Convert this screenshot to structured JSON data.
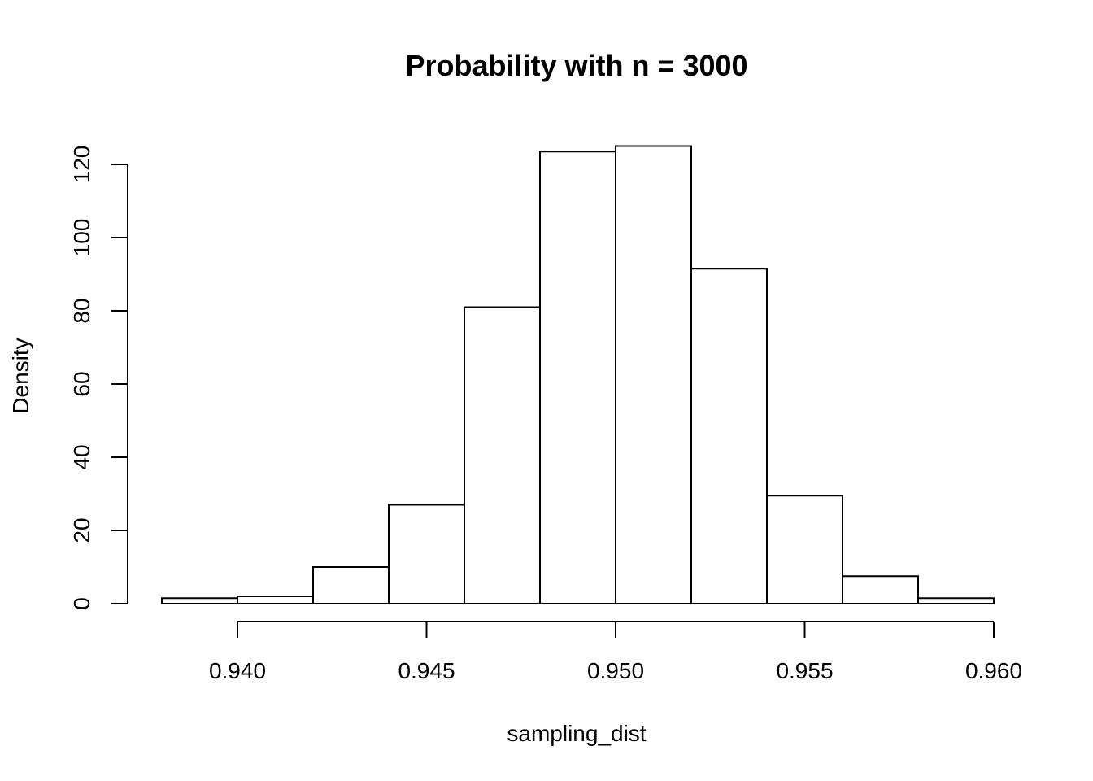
{
  "chart_data": {
    "type": "bar",
    "title": "Probability with n = 3000",
    "xlabel": "sampling_dist",
    "ylabel": "Density",
    "bins": [
      {
        "start": 0.938,
        "end": 0.94,
        "density": 1.5
      },
      {
        "start": 0.94,
        "end": 0.942,
        "density": 2
      },
      {
        "start": 0.942,
        "end": 0.944,
        "density": 10
      },
      {
        "start": 0.944,
        "end": 0.946,
        "density": 27
      },
      {
        "start": 0.946,
        "end": 0.948,
        "density": 81
      },
      {
        "start": 0.948,
        "end": 0.95,
        "density": 123.5
      },
      {
        "start": 0.95,
        "end": 0.952,
        "density": 125
      },
      {
        "start": 0.952,
        "end": 0.954,
        "density": 91.5
      },
      {
        "start": 0.954,
        "end": 0.956,
        "density": 29.5
      },
      {
        "start": 0.956,
        "end": 0.958,
        "density": 7.5
      },
      {
        "start": 0.958,
        "end": 0.96,
        "density": 1.5
      }
    ],
    "xticks": [
      "0.940",
      "0.945",
      "0.950",
      "0.955",
      "0.960"
    ],
    "yticks": [
      "0",
      "20",
      "40",
      "60",
      "80",
      "100",
      "120"
    ],
    "xlim": [
      0.938,
      0.96
    ],
    "ylim": [
      0,
      125
    ],
    "grid": false,
    "legend": "none"
  }
}
